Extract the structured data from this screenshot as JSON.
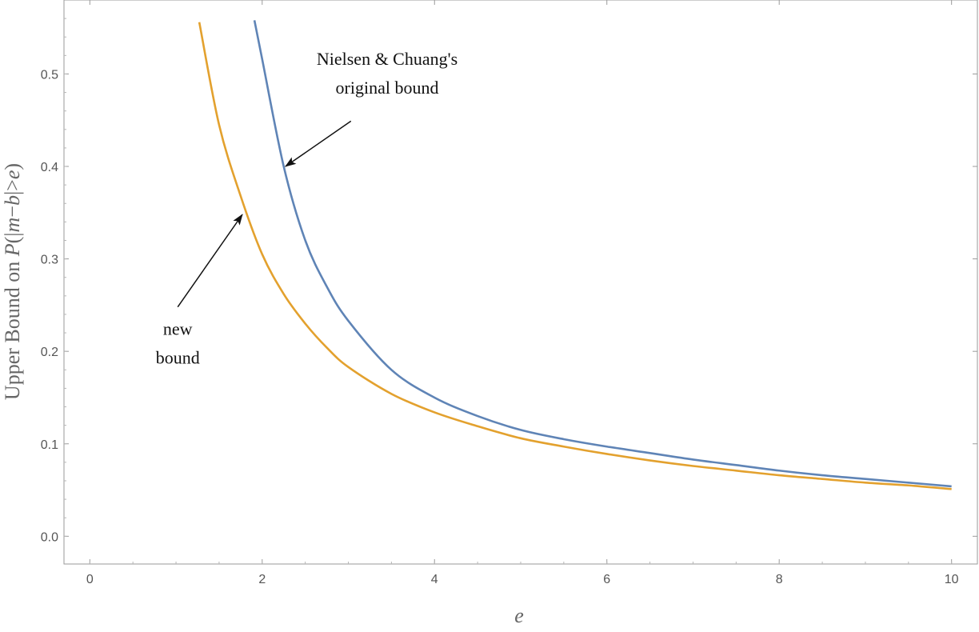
{
  "chart_data": {
    "type": "line",
    "title": "",
    "xlabel": "e",
    "ylabel": "Upper Bound on P(|m−b|>e)",
    "ylabel_parts": {
      "prefix": "Upper Bound on ",
      "p": "P",
      "open": "(|",
      "m": "m",
      "minus": "−",
      "b": "b",
      "cmp": "|>",
      "e": "e",
      "close": ")"
    },
    "xlim": [
      -0.3,
      10.3
    ],
    "ylim": [
      -0.03,
      0.58
    ],
    "x_ticks": [
      0,
      2,
      4,
      6,
      8,
      10
    ],
    "x_tick_labels": [
      "0",
      "2",
      "4",
      "6",
      "8",
      "10"
    ],
    "y_ticks": [
      0.0,
      0.1,
      0.2,
      0.3,
      0.4,
      0.5
    ],
    "y_tick_labels": [
      "0.0",
      "0.1",
      "0.2",
      "0.3",
      "0.4",
      "0.5"
    ],
    "grid": false,
    "legend": "none",
    "series": [
      {
        "color": "#5f84b6",
        "x": [
          1.91,
          2.0,
          2.25,
          2.5,
          2.75,
          3.0,
          3.5,
          4.0,
          4.5,
          5.0,
          5.5,
          6.0,
          6.5,
          7.0,
          7.5,
          8.0,
          8.5,
          9.0,
          9.5,
          10.0
        ],
        "y": [
          0.558,
          0.516,
          0.4,
          0.32,
          0.27,
          0.233,
          0.18,
          0.15,
          0.13,
          0.115,
          0.105,
          0.097,
          0.09,
          0.083,
          0.077,
          0.071,
          0.066,
          0.062,
          0.058,
          0.054
        ]
      },
      {
        "color": "#e3a12e",
        "x": [
          1.27,
          1.5,
          1.75,
          2.0,
          2.25,
          2.5,
          2.75,
          3.0,
          3.5,
          4.0,
          4.5,
          5.0,
          5.5,
          6.0,
          6.5,
          7.0,
          7.5,
          8.0,
          8.5,
          9.0,
          9.5,
          10.0
        ],
        "y": [
          0.556,
          0.445,
          0.368,
          0.305,
          0.262,
          0.23,
          0.204,
          0.183,
          0.154,
          0.134,
          0.119,
          0.106,
          0.097,
          0.089,
          0.082,
          0.076,
          0.071,
          0.066,
          0.062,
          0.058,
          0.055,
          0.051
        ]
      }
    ],
    "annotations": [
      {
        "lines": [
          "Nielsen & Chuang's",
          "original bound"
        ],
        "text_x": 3.45,
        "text_y": 0.51,
        "arrow_from": [
          3.03,
          0.449
        ],
        "arrow_to": [
          2.27,
          0.4
        ]
      },
      {
        "lines": [
          "new",
          "bound"
        ],
        "text_x": 1.02,
        "text_y": 0.218,
        "arrow_from": [
          1.02,
          0.248
        ],
        "arrow_to": [
          1.77,
          0.348
        ]
      }
    ]
  }
}
